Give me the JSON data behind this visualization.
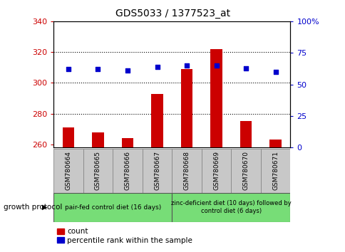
{
  "title": "GDS5033 / 1377523_at",
  "samples": [
    "GSM780664",
    "GSM780665",
    "GSM780666",
    "GSM780667",
    "GSM780668",
    "GSM780669",
    "GSM780670",
    "GSM780671"
  ],
  "count_values": [
    271,
    268,
    264,
    293,
    309,
    322,
    275,
    263
  ],
  "percentile_values": [
    62,
    62,
    61,
    64,
    65,
    65,
    63,
    60
  ],
  "ylim_left": [
    258,
    340
  ],
  "ylim_right": [
    0,
    100
  ],
  "yticks_left": [
    260,
    280,
    300,
    320,
    340
  ],
  "yticks_right": [
    0,
    25,
    50,
    75,
    100
  ],
  "yticklabels_right": [
    "0",
    "25",
    "50",
    "75",
    "100%"
  ],
  "bar_color": "#cc0000",
  "dot_color": "#0000cc",
  "bar_width": 0.4,
  "grid_dotted_at": [
    280,
    300,
    320
  ],
  "group1_label": "pair-fed control diet (16 days)",
  "group2_label": "zinc-deficient diet (10 days) followed by\ncontrol diet (6 days)",
  "growth_protocol_label": "growth protocol",
  "legend_count": "count",
  "legend_percentile": "percentile rank within the sample",
  "group1_color": "#77dd77",
  "group2_color": "#77dd77",
  "tick_label_color_left": "#cc0000",
  "tick_label_color_right": "#0000cc",
  "title_color": "#000000",
  "ax_bg": "#ffffff",
  "sample_box_color": "#c8c8c8",
  "sample_box_edge": "#888888"
}
